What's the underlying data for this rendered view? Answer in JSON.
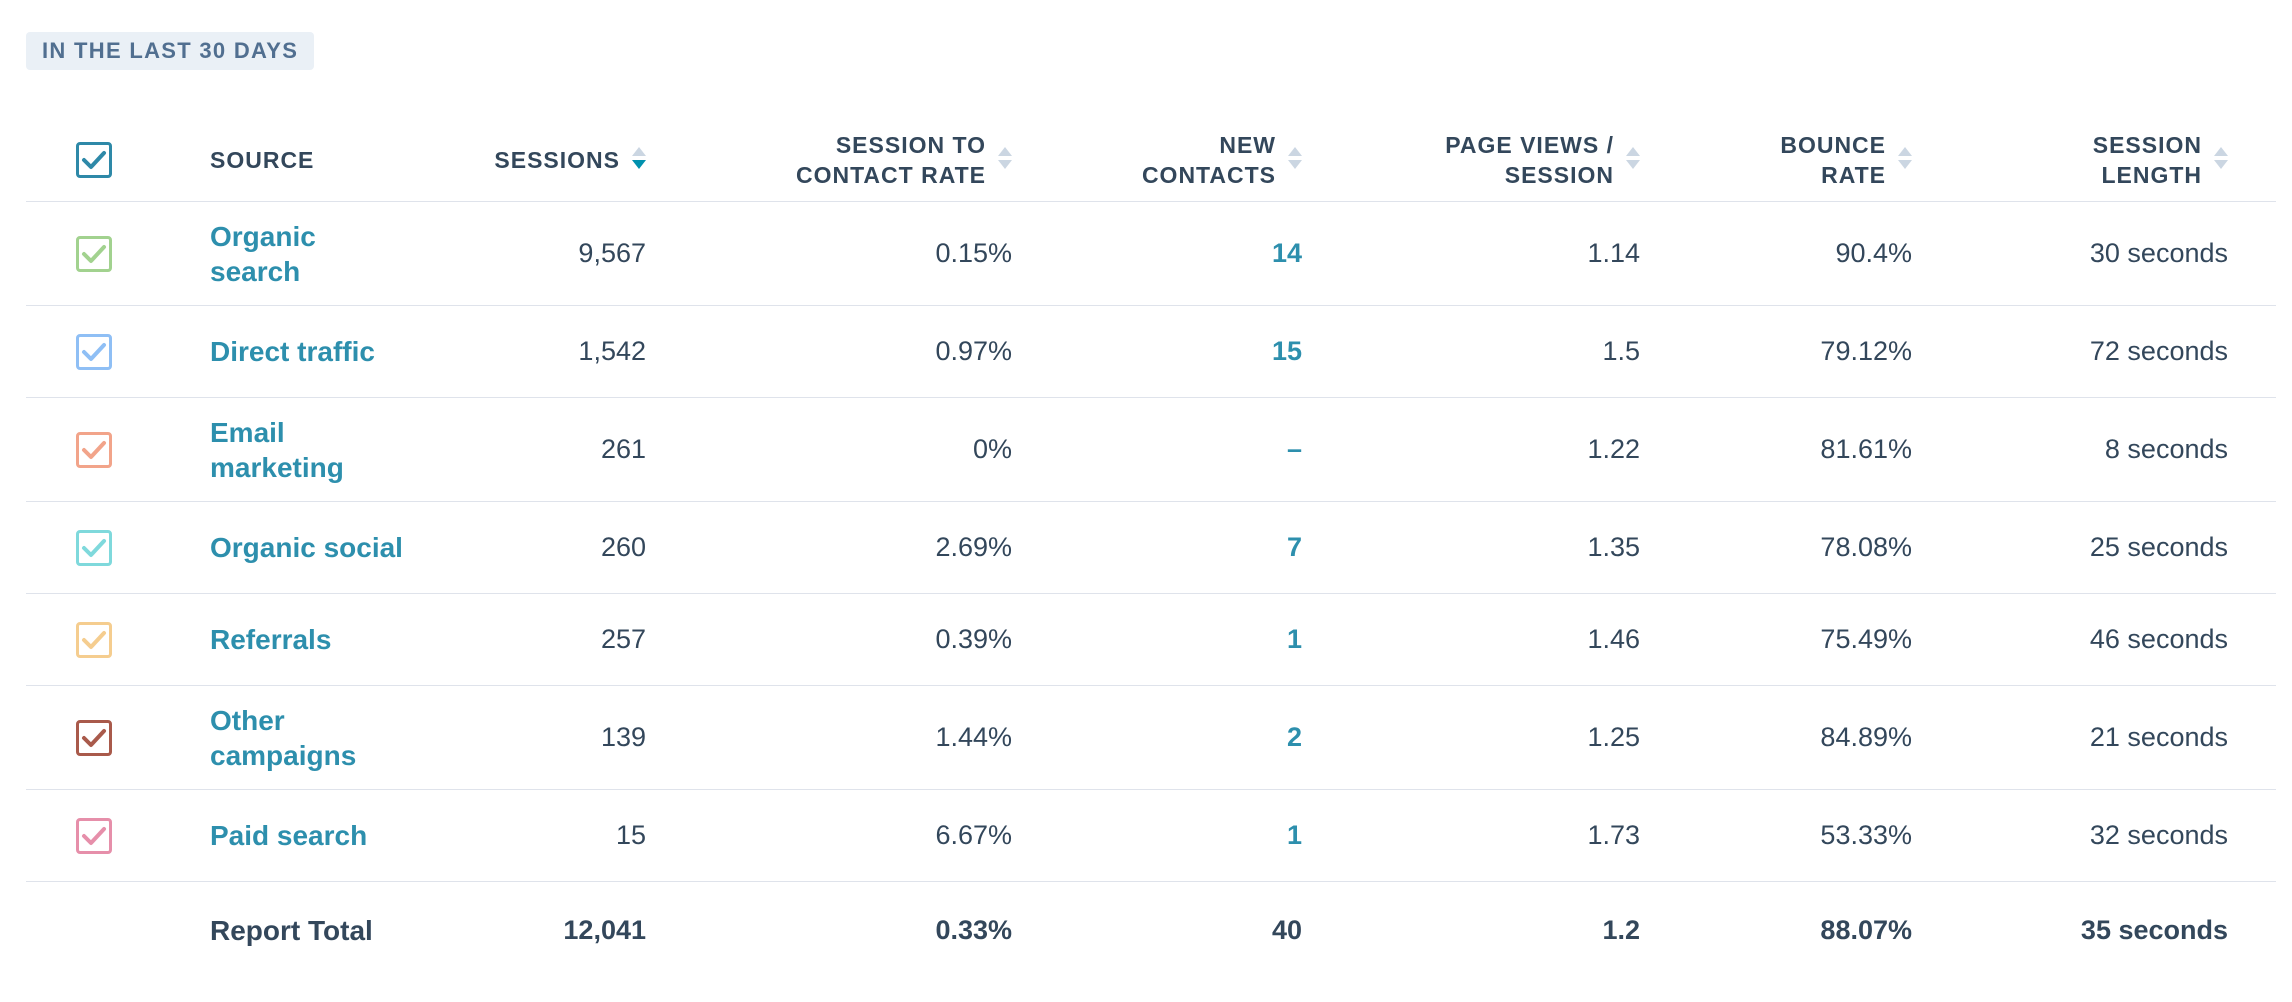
{
  "period_badge": "IN THE LAST 30 DAYS",
  "header": {
    "source": "SOURCE",
    "sessions": "SESSIONS",
    "session_to_contact_rate_line1": "SESSION TO",
    "session_to_contact_rate_line2": "CONTACT RATE",
    "new_contacts_line1": "NEW",
    "new_contacts_line2": "CONTACTS",
    "page_views_line1": "PAGE VIEWS /",
    "page_views_line2": "SESSION",
    "bounce_rate_line1": "BOUNCE",
    "bounce_rate_line2": "RATE",
    "session_length_line1": "SESSION",
    "session_length_line2": "LENGTH",
    "select_all_checked": true,
    "select_all_color": "#2e89a8",
    "sorted_column": "sessions",
    "sort_direction": "descending"
  },
  "rows": [
    {
      "source_line1": "Organic",
      "source_line2": "search",
      "sessions": "9,567",
      "session_to_contact_rate": "0.15%",
      "new_contacts": "14",
      "page_views_per_session": "1.14",
      "bounce_rate": "90.4%",
      "session_length": "30 seconds",
      "checkbox_color": "#a2d28f",
      "checked": true
    },
    {
      "source_line1": "Direct traffic",
      "source_line2": "",
      "sessions": "1,542",
      "session_to_contact_rate": "0.97%",
      "new_contacts": "15",
      "page_views_per_session": "1.5",
      "bounce_rate": "79.12%",
      "session_length": "72 seconds",
      "checkbox_color": "#8fbff5",
      "checked": true
    },
    {
      "source_line1": "Email",
      "source_line2": "marketing",
      "sessions": "261",
      "session_to_contact_rate": "0%",
      "new_contacts": "–",
      "page_views_per_session": "1.22",
      "bounce_rate": "81.61%",
      "session_length": "8 seconds",
      "checkbox_color": "#f2a48a",
      "checked": true
    },
    {
      "source_line1": "Organic social",
      "source_line2": "",
      "sessions": "260",
      "session_to_contact_rate": "2.69%",
      "new_contacts": "7",
      "page_views_per_session": "1.35",
      "bounce_rate": "78.08%",
      "session_length": "25 seconds",
      "checkbox_color": "#7fd9dc",
      "checked": true
    },
    {
      "source_line1": "Referrals",
      "source_line2": "",
      "sessions": "257",
      "session_to_contact_rate": "0.39%",
      "new_contacts": "1",
      "page_views_per_session": "1.46",
      "bounce_rate": "75.49%",
      "session_length": "46 seconds",
      "checkbox_color": "#f5cd8f",
      "checked": true
    },
    {
      "source_line1": "Other",
      "source_line2": "campaigns",
      "sessions": "139",
      "session_to_contact_rate": "1.44%",
      "new_contacts": "2",
      "page_views_per_session": "1.25",
      "bounce_rate": "84.89%",
      "session_length": "21 seconds",
      "checkbox_color": "#a95a4b",
      "checked": true
    },
    {
      "source_line1": "Paid search",
      "source_line2": "",
      "sessions": "15",
      "session_to_contact_rate": "6.67%",
      "new_contacts": "1",
      "page_views_per_session": "1.73",
      "bounce_rate": "53.33%",
      "session_length": "32 seconds",
      "checkbox_color": "#e68faa",
      "checked": true
    }
  ],
  "total": {
    "label": "Report Total",
    "sessions": "12,041",
    "session_to_contact_rate": "0.33%",
    "new_contacts": "40",
    "page_views_per_session": "1.2",
    "bounce_rate": "88.07%",
    "session_length": "35 seconds"
  }
}
